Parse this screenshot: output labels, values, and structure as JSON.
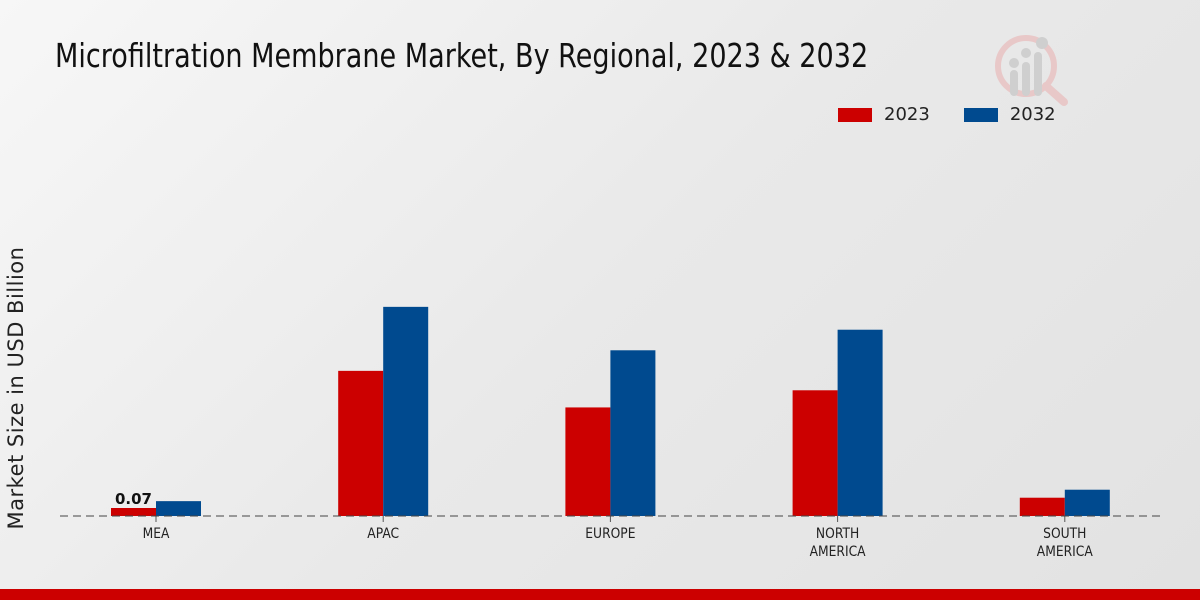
{
  "chart_data": {
    "type": "bar",
    "title": "Microfiltration Membrane Market, By Regional, 2023 & 2032",
    "xlabel": "",
    "ylabel": "Market Size in USD Billion",
    "categories": [
      "MEA",
      "APAC",
      "EUROPE",
      "NORTH AMERICA",
      "SOUTH AMERICA"
    ],
    "category_lines": [
      [
        "MEA"
      ],
      [
        "APAC"
      ],
      [
        "EUROPE"
      ],
      [
        "NORTH",
        "AMERICA"
      ],
      [
        "SOUTH",
        "AMERICA"
      ]
    ],
    "series": [
      {
        "name": "2023",
        "color": "#cc0000",
        "values": [
          0.07,
          1.27,
          0.95,
          1.1,
          0.16
        ]
      },
      {
        "name": "2032",
        "color": "#004a8f",
        "values": [
          0.13,
          1.83,
          1.45,
          1.63,
          0.23
        ]
      }
    ],
    "data_labels": [
      {
        "series": 0,
        "index": 0,
        "text": "0.07"
      }
    ],
    "ylim": [
      0,
      3.5
    ],
    "grid": false,
    "legend_position": "top-right"
  },
  "colors": {
    "accent_bar": "#cc0000"
  }
}
